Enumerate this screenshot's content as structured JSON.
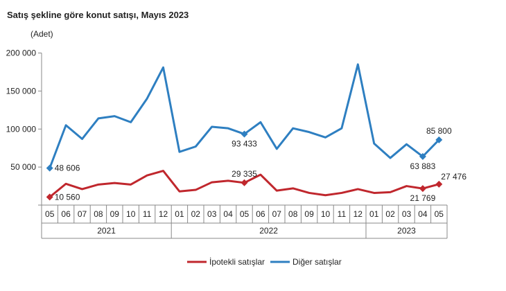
{
  "title": "Satış şekline göre konut satışı, Mayıs 2023",
  "chart_data": {
    "type": "line",
    "title": "Satış şekline göre konut satışı, Mayıs 2023",
    "ylabel": "(Adet)",
    "ylim": [
      0,
      200000
    ],
    "yticks": [
      "50 000",
      "100 000",
      "150 000",
      "200 000"
    ],
    "ytick_values": [
      50000,
      100000,
      150000,
      200000
    ],
    "categories": [
      "05",
      "06",
      "07",
      "08",
      "09",
      "10",
      "11",
      "12",
      "01",
      "02",
      "03",
      "04",
      "05",
      "06",
      "07",
      "08",
      "09",
      "10",
      "11",
      "12",
      "01",
      "02",
      "03",
      "04",
      "05"
    ],
    "years": [
      {
        "label": "2021",
        "months": 8
      },
      {
        "label": "2022",
        "months": 12
      },
      {
        "label": "2023",
        "months": 5
      }
    ],
    "grid": false,
    "legend": "bottom",
    "series": [
      {
        "name": "İpotekli satışlar",
        "color": "#c0272d",
        "values": [
          10560,
          28000,
          21000,
          27000,
          29000,
          27000,
          39000,
          45000,
          18000,
          20000,
          30000,
          32000,
          29335,
          40000,
          19000,
          22000,
          16000,
          13000,
          16000,
          21000,
          16000,
          17000,
          25000,
          21769,
          27476
        ],
        "labels": [
          {
            "index": 0,
            "text": "10 560",
            "pos": "right"
          },
          {
            "index": 12,
            "text": "29 335",
            "pos": "above"
          },
          {
            "index": 23,
            "text": "21 769",
            "pos": "below"
          },
          {
            "index": 24,
            "text": "27 476",
            "pos": "aboveright"
          }
        ]
      },
      {
        "name": "Diğer satışlar",
        "color": "#2e7fc1",
        "values": [
          48606,
          105000,
          87000,
          114000,
          117000,
          109000,
          140000,
          181000,
          70000,
          77000,
          103000,
          101000,
          93433,
          109000,
          74000,
          101000,
          96000,
          89000,
          101000,
          185000,
          81000,
          62000,
          80000,
          63883,
          85800
        ],
        "labels": [
          {
            "index": 0,
            "text": "48 606",
            "pos": "right"
          },
          {
            "index": 12,
            "text": "93 433",
            "pos": "below"
          },
          {
            "index": 23,
            "text": "63 883",
            "pos": "below"
          },
          {
            "index": 24,
            "text": "85 800",
            "pos": "above"
          }
        ]
      }
    ]
  }
}
